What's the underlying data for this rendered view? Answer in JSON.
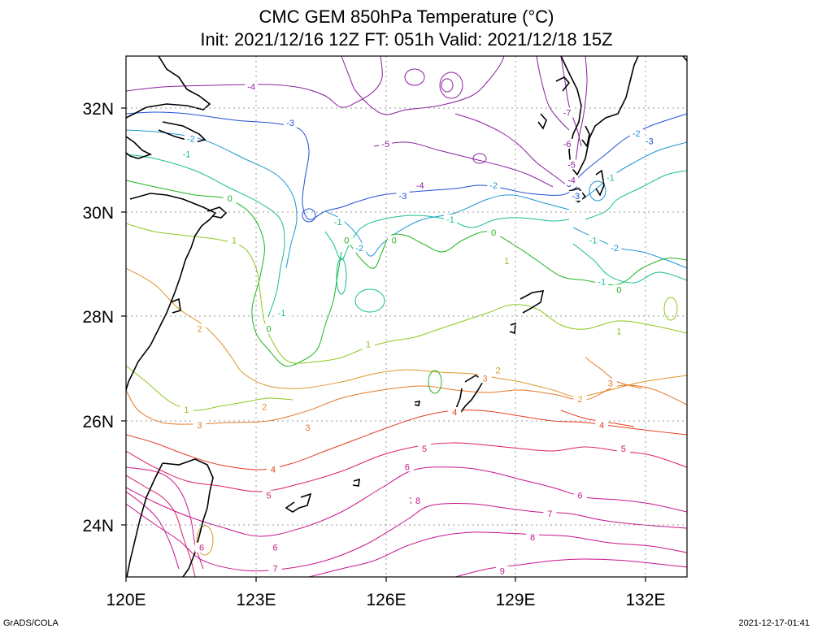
{
  "title_line1": "CMC GEM 850hPa Temperature (°C)",
  "title_line2": "Init: 2021/12/16 12Z  FT: 051h  Valid: 2021/12/18 15Z",
  "lon_labels": [
    "120E",
    "123E",
    "126E",
    "129E",
    "132E"
  ],
  "lat_labels": [
    "32N",
    "30N",
    "28N",
    "26N",
    "24N"
  ],
  "footer_left": "GrADS/COLA",
  "footer_right": "2021-12-17-01:41",
  "contour_colors": {
    "-7": "#8b1fa0",
    "-6": "#8b1fa0",
    "-5": "#8b1fa0",
    "-4": "#8b1fa0",
    "-3": "#1e50d2",
    "-2": "#1e96d2",
    "-1": "#14be96",
    "0": "#1eb41e",
    "1": "#8cc81e",
    "2": "#dc9628",
    "3": "#e67828",
    "4": "#e63c1e",
    "5": "#dc1e64",
    "6": "#c8148c",
    "7": "#c8148c",
    "8": "#c8148c",
    "9": "#c8148c"
  },
  "contour_labels": [
    {
      "text": "-4",
      "lat": 32.4,
      "lon": 122.9,
      "level": "-4"
    },
    {
      "text": "-3",
      "lat": 31.7,
      "lon": 123.8,
      "level": "-3"
    },
    {
      "text": "-2",
      "lat": 31.4,
      "lon": 121.5,
      "level": "-2"
    },
    {
      "text": "-1",
      "lat": 31.1,
      "lon": 121.4,
      "level": "-1"
    },
    {
      "text": "0",
      "lat": 30.25,
      "lon": 122.4,
      "level": "0"
    },
    {
      "text": "1",
      "lat": 29.45,
      "lon": 122.5,
      "level": "1"
    },
    {
      "text": "2",
      "lat": 27.75,
      "lon": 121.7,
      "level": "2"
    },
    {
      "text": "1",
      "lat": 26.2,
      "lon": 121.4,
      "level": "1"
    },
    {
      "text": "3",
      "lat": 25.9,
      "lon": 121.7,
      "level": "3"
    },
    {
      "text": "2",
      "lat": 26.25,
      "lon": 123.2,
      "level": "2"
    },
    {
      "text": "3",
      "lat": 25.85,
      "lon": 124.2,
      "level": "3"
    },
    {
      "text": "4",
      "lat": 25.05,
      "lon": 123.4,
      "level": "4"
    },
    {
      "text": "5",
      "lat": 24.55,
      "lon": 123.3,
      "level": "5"
    },
    {
      "text": "6",
      "lat": 23.55,
      "lon": 121.75,
      "level": "6"
    },
    {
      "text": "6",
      "lat": 23.55,
      "lon": 123.45,
      "level": "6"
    },
    {
      "text": "7",
      "lat": 23.15,
      "lon": 123.45,
      "level": "7"
    },
    {
      "text": "-5",
      "lat": 31.3,
      "lon": 126.0,
      "level": "-5"
    },
    {
      "text": "-4",
      "lat": 30.5,
      "lon": 126.8,
      "level": "-4"
    },
    {
      "text": "-3",
      "lat": 30.3,
      "lon": 126.4,
      "level": "-3"
    },
    {
      "text": "-2",
      "lat": 29.3,
      "lon": 125.4,
      "level": "-2"
    },
    {
      "text": "-1",
      "lat": 29.8,
      "lon": 124.9,
      "level": "-1"
    },
    {
      "text": "0",
      "lat": 29.45,
      "lon": 125.1,
      "level": "0"
    },
    {
      "text": "0",
      "lat": 29.45,
      "lon": 126.2,
      "level": "0"
    },
    {
      "text": "-1",
      "lat": 28.05,
      "lon": 123.6,
      "level": "-1"
    },
    {
      "text": "0",
      "lat": 27.75,
      "lon": 123.3,
      "level": "0"
    },
    {
      "text": "1",
      "lat": 27.45,
      "lon": 125.6,
      "level": "1"
    },
    {
      "text": "-2",
      "lat": 30.5,
      "lon": 128.5,
      "level": "-2"
    },
    {
      "text": "-1",
      "lat": 29.85,
      "lon": 127.5,
      "level": "-1"
    },
    {
      "text": "0",
      "lat": 29.6,
      "lon": 128.5,
      "level": "0"
    },
    {
      "text": "1",
      "lat": 29.05,
      "lon": 128.8,
      "level": "1"
    },
    {
      "text": "2",
      "lat": 26.95,
      "lon": 128.6,
      "level": "2"
    },
    {
      "text": "3",
      "lat": 26.8,
      "lon": 128.3,
      "level": "3"
    },
    {
      "text": "4",
      "lat": 26.15,
      "lon": 127.6,
      "level": "4"
    },
    {
      "text": "5",
      "lat": 25.45,
      "lon": 126.9,
      "level": "5"
    },
    {
      "text": "6",
      "lat": 25.1,
      "lon": 126.5,
      "level": "6"
    },
    {
      "text": "7",
      "lat": 24.45,
      "lon": 126.6,
      "level": "7"
    },
    {
      "text": "8",
      "lat": 24.45,
      "lon": 126.75,
      "level": "8"
    },
    {
      "text": "9",
      "lat": 23.1,
      "lon": 128.7,
      "level": "9"
    },
    {
      "text": "-7",
      "lat": 31.9,
      "lon": 130.2,
      "level": "-7"
    },
    {
      "text": "-6",
      "lat": 31.3,
      "lon": 130.2,
      "level": "-6"
    },
    {
      "text": "-5",
      "lat": 30.9,
      "lon": 130.3,
      "level": "-5"
    },
    {
      "text": "-4",
      "lat": 30.6,
      "lon": 130.3,
      "level": "-4"
    },
    {
      "text": "-3",
      "lat": 30.3,
      "lon": 130.4,
      "level": "-3"
    },
    {
      "text": "-2",
      "lat": 31.5,
      "lon": 131.8,
      "level": "-2"
    },
    {
      "text": "-3",
      "lat": 31.35,
      "lon": 132.1,
      "level": "-3"
    },
    {
      "text": "-1",
      "lat": 30.65,
      "lon": 131.2,
      "level": "-1"
    },
    {
      "text": "-1",
      "lat": 29.45,
      "lon": 130.8,
      "level": "-1"
    },
    {
      "text": "-2",
      "lat": 29.3,
      "lon": 131.3,
      "level": "-2"
    },
    {
      "text": "-1",
      "lat": 28.65,
      "lon": 131.0,
      "level": "-1"
    },
    {
      "text": "0",
      "lat": 28.5,
      "lon": 131.4,
      "level": "0"
    },
    {
      "text": "1",
      "lat": 27.7,
      "lon": 131.4,
      "level": "1"
    },
    {
      "text": "2",
      "lat": 26.4,
      "lon": 130.5,
      "level": "2"
    },
    {
      "text": "3",
      "lat": 26.7,
      "lon": 131.2,
      "level": "3"
    },
    {
      "text": "4",
      "lat": 25.9,
      "lon": 131.0,
      "level": "4"
    },
    {
      "text": "5",
      "lat": 25.45,
      "lon": 131.5,
      "level": "5"
    },
    {
      "text": "6",
      "lat": 24.55,
      "lon": 130.5,
      "level": "6"
    },
    {
      "text": "7",
      "lat": 24.2,
      "lon": 129.8,
      "level": "7"
    },
    {
      "text": "8",
      "lat": 23.75,
      "lon": 129.4,
      "level": "8"
    }
  ]
}
